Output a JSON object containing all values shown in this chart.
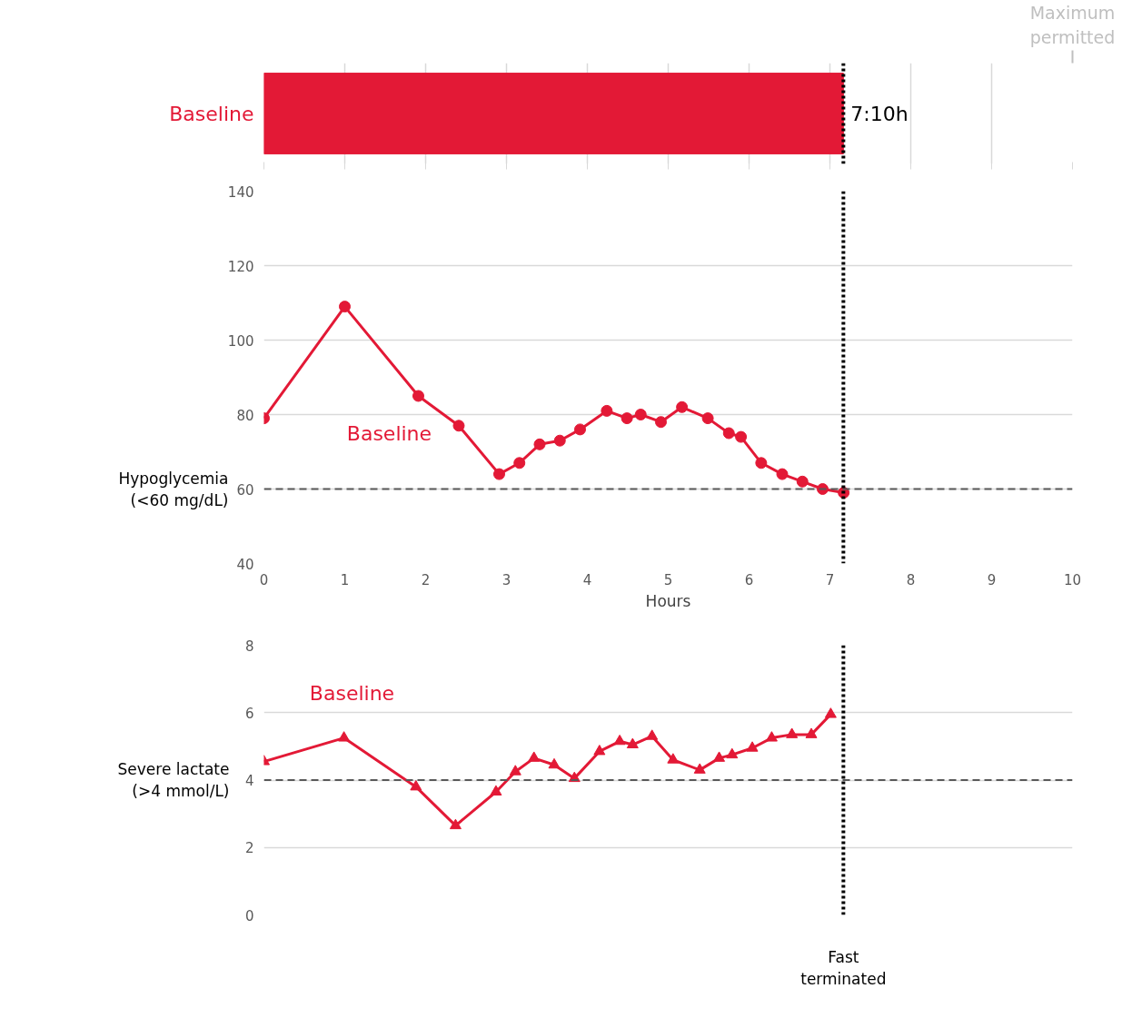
{
  "chart_data": [
    {
      "type": "bar",
      "orientation": "horizontal",
      "categories": [
        "Baseline"
      ],
      "values": [
        7.1667
      ],
      "colors": [
        "#e31936"
      ],
      "value_labels": [
        "7:10h"
      ],
      "xlim": [
        0,
        10
      ],
      "xticks": [
        {
          "value": 0,
          "label": null
        },
        {
          "value": 1,
          "label": null
        },
        {
          "value": 2,
          "label": null
        },
        {
          "value": 3,
          "label": null
        },
        {
          "value": 4,
          "label": null
        },
        {
          "value": 5,
          "label": null
        },
        {
          "value": 6,
          "label": null
        },
        {
          "value": 7,
          "label": null
        },
        {
          "value": 8,
          "label": null
        },
        {
          "value": 9,
          "label": null
        },
        {
          "value": 10,
          "label": null
        }
      ],
      "grid": "x",
      "tick_labels": "y",
      "annotations": [
        "Maximum\npermitted"
      ],
      "ref_lines": [
        {
          "axis": "x",
          "value": 7.1667,
          "label": null,
          "color": "#000000",
          "line_style": "dotted"
        }
      ]
    },
    {
      "type": "line",
      "xlabel": "Hours",
      "marker": "circle",
      "line_style": "solid",
      "grid": "y",
      "xlim": [
        0,
        10
      ],
      "xticks": [
        0,
        1,
        2,
        3,
        4,
        5,
        6,
        7,
        8,
        9,
        10
      ],
      "ylim": [
        40,
        140
      ],
      "yticks": [
        40,
        60,
        80,
        100,
        120,
        140
      ],
      "series": [
        {
          "name": "Baseline",
          "color": "#e31936",
          "x": [
            0,
            1.0,
            1.91,
            2.41,
            2.91,
            3.16,
            3.41,
            3.66,
            3.91,
            4.24,
            4.49,
            4.66,
            4.91,
            5.17,
            5.49,
            5.75,
            5.9,
            6.15,
            6.41,
            6.66,
            6.91,
            7.17
          ],
          "values": [
            79,
            109,
            85,
            77,
            64,
            67,
            72,
            73,
            76,
            81,
            79,
            80,
            78,
            82,
            79,
            75,
            74,
            67,
            64,
            62,
            60,
            59
          ]
        }
      ],
      "ref_lines": [
        {
          "axis": "y",
          "value": 60,
          "label": "Hypoglycemia\n(<60 mg/dL)",
          "color": "#595959",
          "line_style": "dashed"
        },
        {
          "axis": "x",
          "value": 7.1667,
          "label": null,
          "color": "#000000",
          "line_style": "dotted"
        }
      ]
    },
    {
      "type": "line",
      "marker": "triangle",
      "line_style": "solid",
      "grid": "y",
      "tick_labels": "y",
      "xlim": [
        0,
        10
      ],
      "xticks": [
        {
          "value": 0,
          "label": null
        },
        {
          "value": 1,
          "label": null
        },
        {
          "value": 2,
          "label": null
        },
        {
          "value": 3,
          "label": null
        },
        {
          "value": 4,
          "label": null
        },
        {
          "value": 5,
          "label": null
        },
        {
          "value": 6,
          "label": null
        },
        {
          "value": 7,
          "label": null
        },
        {
          "value": 8,
          "label": null
        },
        {
          "value": 9,
          "label": null
        },
        {
          "value": 10,
          "label": null
        }
      ],
      "ylim": [
        0,
        8
      ],
      "yticks": [
        0,
        2,
        4,
        6,
        8
      ],
      "series": [
        {
          "name": "Baseline",
          "color": "#e31936",
          "x": [
            0,
            0.99,
            1.88,
            2.37,
            2.87,
            3.11,
            3.34,
            3.59,
            3.84,
            4.15,
            4.4,
            4.56,
            4.8,
            5.06,
            5.39,
            5.63,
            5.79,
            6.04,
            6.28,
            6.53,
            6.77,
            7.01
          ],
          "values": [
            4.55,
            5.25,
            3.8,
            2.65,
            3.65,
            4.25,
            4.65,
            4.45,
            4.05,
            4.85,
            5.15,
            5.05,
            5.3,
            4.6,
            4.3,
            4.65,
            4.75,
            4.95,
            5.25,
            5.35,
            5.35,
            5.95
          ]
        }
      ],
      "ref_lines": [
        {
          "axis": "y",
          "value": 4,
          "label": "Severe lactate\n(>4 mmol/L)",
          "color": "#595959",
          "line_style": "dashed"
        },
        {
          "axis": "x",
          "value": 7.1667,
          "label": "Fast\nterminated",
          "color": "#000000",
          "line_style": "dotted"
        }
      ]
    }
  ]
}
